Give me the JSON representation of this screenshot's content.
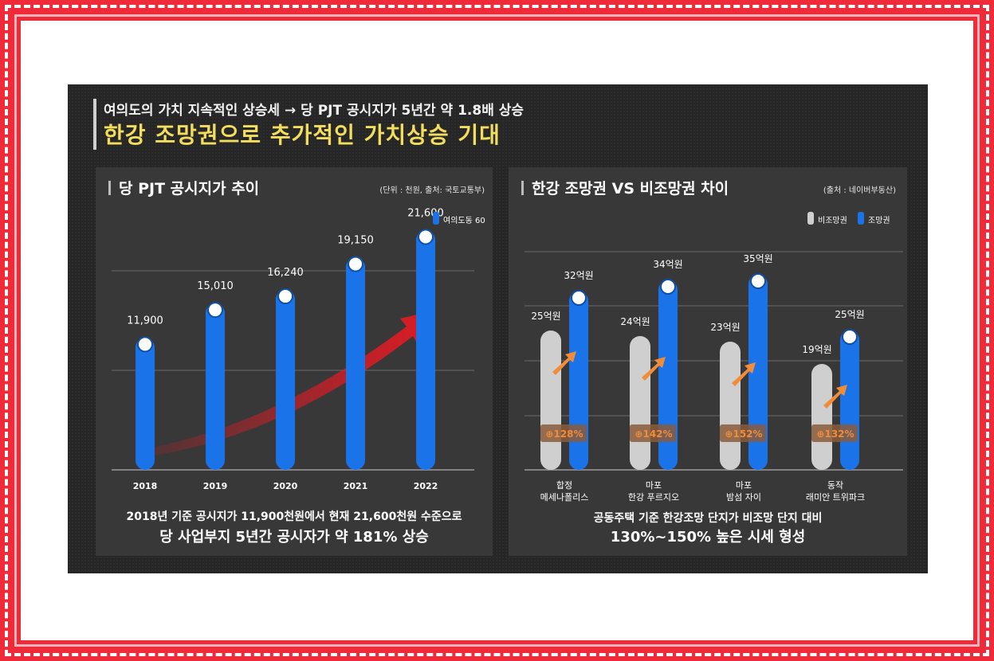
{
  "header": {
    "subtitle": "여의도의 가치 지속적인 상승세 → 당 PJT 공시지가 5년간 약 1.8배 상승",
    "title": "한강 조망권으로 추가적인 가치상승 기대"
  },
  "left_panel": {
    "title": "당 PJT 공시지가 추이",
    "note": "(단위 : 천원, 출처: 국토교통부)",
    "caption_line1": "2018년 기준 공시지가 11,900천원에서 현재 21,600천원 수준으로",
    "caption_line2": "당 사업부지 5년간 공시자가 약 181% 상승"
  },
  "right_panel": {
    "title": "한강 조망권 VS 비조망권 차이",
    "note": "(출처 : 네이버부동산)",
    "caption_line1": "공동주택 기준 한강조망 단지가 비조망 단지 대비",
    "caption_line2": "130%~150% 높은 시세 형성"
  },
  "colors": {
    "blue": "#1a73e8",
    "gray": "#cfcfcf",
    "red": "#e01b24",
    "orange": "#f08c3a",
    "title_yellow": "#f3dd5c"
  },
  "chart_data": [
    {
      "type": "bar",
      "categories": [
        "2018",
        "2019",
        "2020",
        "2021",
        "2022"
      ],
      "series": [
        {
          "name": "여의도동 60",
          "values": [
            11900,
            15010,
            16240,
            19150,
            21600
          ]
        }
      ],
      "value_labels": [
        "11,900",
        "15,010",
        "16,240",
        "19,150",
        "21,600"
      ],
      "ylim": [
        0,
        23000
      ],
      "legend": "top-right",
      "grid": true,
      "annotation": "trend-arrow"
    },
    {
      "type": "bar",
      "categories": [
        {
          "line1": "합정",
          "line2": "메세나폴리스"
        },
        {
          "line1": "마포",
          "line2": "한강 푸르지오"
        },
        {
          "line1": "마포",
          "line2": "밤섬 자이"
        },
        {
          "line1": "동작",
          "line2": "래미안 트위파크"
        }
      ],
      "series": [
        {
          "name": "비조망권",
          "values": [
            25,
            24,
            23,
            19
          ],
          "labels": [
            "25억원",
            "24억원",
            "23억원",
            "19억원"
          ]
        },
        {
          "name": "조망권",
          "values": [
            32,
            34,
            35,
            25
          ],
          "labels": [
            "32억원",
            "34억원",
            "35억원",
            "25억원"
          ]
        }
      ],
      "ratios": [
        "128%",
        "142%",
        "152%",
        "132%"
      ],
      "ylim": [
        0,
        40
      ],
      "legend": "top-right",
      "grid": true
    }
  ]
}
